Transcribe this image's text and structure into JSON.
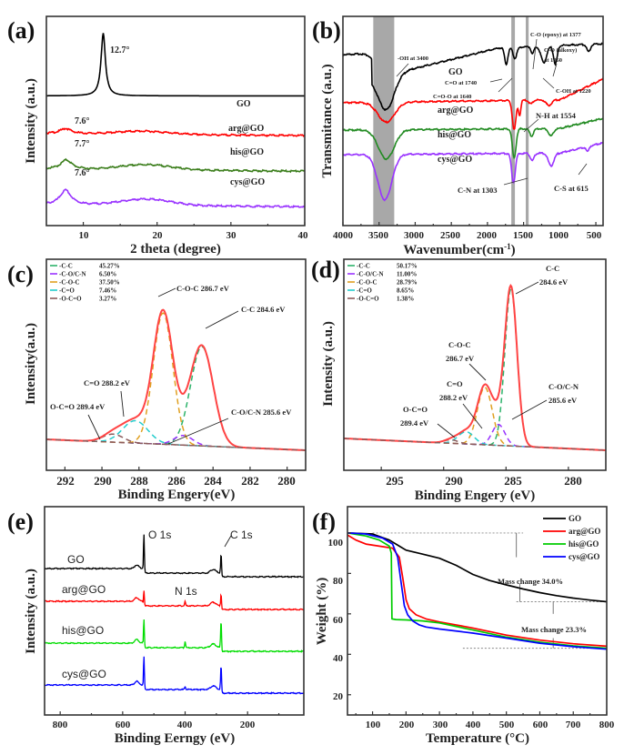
{
  "chart_data": [
    {
      "id": "a",
      "panel_label": "(a)",
      "type": "line",
      "title": "",
      "xlabel": "2 theta (degree)",
      "ylabel": "Intensity (a.u.)",
      "xlim": [
        5,
        40
      ],
      "xticks": [
        10,
        20,
        30,
        40
      ],
      "yticks_shown": false,
      "series": [
        {
          "name": "GO",
          "color": "#000000",
          "offset": 0.62,
          "peaks": [
            {
              "x": 12.7,
              "h": 0.3,
              "w": 0.35
            }
          ],
          "hump": {
            "x": 20,
            "h": 0.0,
            "w": 5
          }
        },
        {
          "name": "arg@GO",
          "color": "#ff0000",
          "offset": 0.44,
          "peaks": [
            {
              "x": 7.6,
              "h": 0.025,
              "w": 0.9
            }
          ],
          "hump": {
            "x": 18,
            "h": 0.015,
            "w": 4
          }
        },
        {
          "name": "his@GO",
          "color": "#3a7d1a",
          "offset": 0.27,
          "peaks": [
            {
              "x": 7.7,
              "h": 0.045,
              "w": 0.9
            }
          ],
          "hump": {
            "x": 18.5,
            "h": 0.025,
            "w": 4
          }
        },
        {
          "name": "cys@GO",
          "color": "#9933ff",
          "offset": 0.1,
          "peaks": [
            {
              "x": 7.6,
              "h": 0.07,
              "w": 0.9
            }
          ],
          "hump": {
            "x": 18.5,
            "h": 0.03,
            "w": 4
          }
        }
      ],
      "annotations": [
        "12.7°",
        "7.6°",
        "7.7°",
        "7.6°"
      ]
    },
    {
      "id": "b",
      "panel_label": "(b)",
      "type": "line",
      "xlabel": "Wavenumber(cm⁻¹)",
      "ylabel": "Transmitance (a.u.)",
      "xlim": [
        4000,
        400
      ],
      "xticks": [
        4000,
        3500,
        3000,
        2500,
        2000,
        1500,
        1000,
        500
      ],
      "shaded_bands": [
        [
          3580,
          3290
        ],
        [
          1670,
          1620
        ],
        [
          1470,
          1430
        ]
      ],
      "series": [
        {
          "name": "GO",
          "color": "#000000"
        },
        {
          "name": "arg@GO",
          "color": "#ff0000"
        },
        {
          "name": "his@GO",
          "color": "#228b22"
        },
        {
          "name": "cys@GO",
          "color": "#9933ff"
        }
      ],
      "annotations": [
        "-OH at 3400",
        "C=O at 1740",
        "C=O-O at 1640",
        "C-O (epoxy) at 1377",
        "C-O (alkoxy) at 1060",
        "C-OH at 1220",
        "N-H at 1554",
        "C-N at 1303",
        "C-S at 615"
      ]
    },
    {
      "id": "c",
      "panel_label": "(c)",
      "type": "line",
      "xlabel": "Binding Engery(eV)",
      "ylabel": "Intensity(a.u.)",
      "xlim": [
        293,
        279
      ],
      "xticks": [
        292,
        290,
        288,
        286,
        284,
        282,
        280
      ],
      "legend": [
        {
          "name": "-C-C",
          "value": "45.27%",
          "color": "#2db36b"
        },
        {
          "name": "-C-O/C-N",
          "value": "6.50%",
          "color": "#9933ff"
        },
        {
          "name": "-C-O-C",
          "value": "37.50%",
          "color": "#e0a020"
        },
        {
          "name": "-C=O",
          "value": "7.46%",
          "color": "#22cccc"
        },
        {
          "name": "-O-C=O",
          "value": "3.27%",
          "color": "#8b5a5a"
        }
      ],
      "components": [
        {
          "name": "C-C",
          "center": 284.6,
          "height": 0.62,
          "fwhm": 1.45,
          "color": "#2db36b"
        },
        {
          "name": "C-O/C-N",
          "center": 285.6,
          "height": 0.06,
          "fwhm": 1.2,
          "color": "#9933ff"
        },
        {
          "name": "C-O-C",
          "center": 286.7,
          "height": 0.82,
          "fwhm": 1.25,
          "color": "#e0a020"
        },
        {
          "name": "C=O",
          "center": 288.2,
          "height": 0.14,
          "fwhm": 1.6,
          "color": "#22cccc"
        },
        {
          "name": "O-C=O",
          "center": 289.4,
          "height": 0.05,
          "fwhm": 1.3,
          "color": "#8b5a5a"
        }
      ],
      "envelope_color": "#ff4444",
      "annotations": [
        "C-O-C 286.7 eV",
        "C-C 284.6 eV",
        "C=O 288.2 eV",
        "O-C=O 289.4 eV",
        "C-O/C-N 285.6 eV"
      ]
    },
    {
      "id": "d",
      "panel_label": "(d)",
      "type": "line",
      "xlabel": "Binding Engery (eV)",
      "ylabel": "Intensity (a.u.)",
      "xlim": [
        298,
        277
      ],
      "xticks": [
        295,
        290,
        285,
        280
      ],
      "legend": [
        {
          "name": "-C-C",
          "value": "50.17%",
          "color": "#2db36b"
        },
        {
          "name": "-C-O/C-N",
          "value": "11.00%",
          "color": "#9933ff"
        },
        {
          "name": "-C-O-C",
          "value": "28.79%",
          "color": "#e0a020"
        },
        {
          "name": "-C=O",
          "value": "8.65%",
          "color": "#22cccc"
        },
        {
          "name": "-O-C=O",
          "value": "1.38%",
          "color": "#8b5a5a"
        }
      ],
      "components": [
        {
          "name": "C-C",
          "center": 284.6,
          "height": 0.9,
          "fwhm": 1.15,
          "color": "#2db36b"
        },
        {
          "name": "C-O/C-N",
          "center": 285.6,
          "height": 0.12,
          "fwhm": 1.2,
          "color": "#9933ff"
        },
        {
          "name": "C-O-C",
          "center": 286.7,
          "height": 0.33,
          "fwhm": 1.4,
          "color": "#e0a020"
        },
        {
          "name": "C=O",
          "center": 288.2,
          "height": 0.07,
          "fwhm": 1.5,
          "color": "#22cccc"
        },
        {
          "name": "O-C=O",
          "center": 289.4,
          "height": 0.02,
          "fwhm": 1.3,
          "color": "#8b5a5a"
        }
      ],
      "envelope_color": "#ff4444",
      "annotations": [
        "C-C 284.6 eV",
        "C-O-C 286.7 eV",
        "C=O 288.2 eV",
        "O-C=O 289.4 eV",
        "C-O/C-N 285.6 eV"
      ]
    },
    {
      "id": "e",
      "panel_label": "(e)",
      "type": "line",
      "xlabel": "Binding Eerngy (eV)",
      "ylabel": "Intensity (a.u.)",
      "xlim": [
        850,
        20
      ],
      "xticks": [
        800,
        600,
        400,
        200
      ],
      "series": [
        {
          "name": "GO",
          "color": "#000000",
          "O1s": 0.72,
          "N1s": 0.0,
          "C1s": 0.42
        },
        {
          "name": "arg@GO",
          "color": "#ff0000",
          "O1s": 0.28,
          "N1s": 0.08,
          "C1s": 0.28
        },
        {
          "name": "his@GO",
          "color": "#00dd00",
          "O1s": 0.52,
          "N1s": 0.12,
          "C1s": 0.55
        },
        {
          "name": "cys@GO",
          "color": "#0000ff",
          "O1s": 0.6,
          "N1s": 0.06,
          "C1s": 0.5
        }
      ],
      "peak_labels": [
        "O 1s",
        "N 1s",
        "C 1s"
      ]
    },
    {
      "id": "f",
      "panel_label": "(f)",
      "type": "line",
      "xlabel": "Temperature (°C)",
      "ylabel": "Weight (%)",
      "xlim": [
        25,
        800
      ],
      "ylim": [
        10,
        113
      ],
      "xticks": [
        100,
        200,
        300,
        400,
        500,
        600,
        700,
        800
      ],
      "yticks": [
        20,
        40,
        60,
        80,
        100
      ],
      "legend_position": "top-right",
      "series": [
        {
          "name": "GO",
          "color": "#000000",
          "x": [
            25,
            100,
            150,
            180,
            200,
            250,
            300,
            350,
            400,
            450,
            500,
            550,
            600,
            650,
            700,
            750,
            800
          ],
          "y": [
            100,
            99.5,
            96.5,
            93.5,
            91.5,
            89.5,
            87.5,
            84,
            79.5,
            76.5,
            74.3,
            72.3,
            70.5,
            69,
            67.8,
            66.8,
            66
          ]
        },
        {
          "name": "arg@GO",
          "color": "#ff0000",
          "x": [
            25,
            50,
            80,
            120,
            160,
            180,
            190,
            200,
            210,
            230,
            260,
            300,
            400,
            500,
            600,
            700,
            800
          ],
          "y": [
            99,
            96.5,
            94.5,
            93.5,
            92.5,
            88,
            78,
            67,
            62.5,
            59.5,
            57.5,
            56,
            53,
            49.5,
            47,
            45.2,
            44
          ]
        },
        {
          "name": "his@GO",
          "color": "#00cc00",
          "x": [
            25,
            80,
            120,
            150,
            156,
            158,
            170,
            200,
            250,
            300,
            400,
            500,
            600,
            700,
            800
          ],
          "y": [
            100,
            98.5,
            96.5,
            93.5,
            90,
            57.5,
            57.2,
            57,
            56.5,
            55.5,
            52,
            48.5,
            46,
            44.2,
            43
          ]
        },
        {
          "name": "cys@GO",
          "color": "#0000ff",
          "x": [
            25,
            80,
            130,
            160,
            175,
            185,
            195,
            205,
            220,
            240,
            260,
            300,
            400,
            500,
            600,
            700,
            800
          ],
          "y": [
            100,
            99.5,
            97.5,
            94.5,
            88,
            76,
            64,
            59.5,
            56.5,
            54.5,
            53.5,
            52.5,
            50.5,
            48,
            45.5,
            43.8,
            42.5
          ]
        }
      ],
      "annotations": [
        "Mass change 34.0%",
        "Mass change 23.3%"
      ]
    }
  ],
  "labels": {
    "a": {
      "panel": "(a)",
      "xlabel": "2 theta (degree)",
      "ylabel": "Intensity (a.u.)",
      "peak_go": "12.7°",
      "peak_arg": "7.6°",
      "peak_his": "7.7°",
      "peak_cys": "7.6°",
      "s_go": "GO",
      "s_arg": "arg@GO",
      "s_his": "his@GO",
      "s_cys": "cys@GO",
      "t10": "10",
      "t20": "20",
      "t30": "30",
      "t40": "40"
    },
    "b": {
      "panel": "(b)",
      "xlabel": "Wavenumber(cm",
      "xlabel_sup": "-1",
      "xlabel_end": ")",
      "ylabel": "Transmitance (a.u.)",
      "s_go": "GO",
      "s_arg": "arg@GO",
      "s_his": "his@GO",
      "s_cys": "cys@GO",
      "oh": "-OH at 3400",
      "co1740": "C=O at 1740",
      "coo1640": "C=O-O at 1640",
      "epoxy": "C-O (epoxy) at 1377",
      "alkoxy1": "C-O (alkoxy)",
      "alkoxy2": "at 1060",
      "coh": "C-OH  at 1220",
      "nh": "N-H at 1554",
      "cn": "C-N at 1303",
      "cs": "C-S at 615",
      "t4000": "4000",
      "t3500": "3500",
      "t3000": "3000",
      "t2500": "2500",
      "t2000": "2000",
      "t1500": "1500",
      "t1000": "1000",
      "t500": "500"
    },
    "c": {
      "panel": "(c)",
      "xlabel": "Binding Engery(eV)",
      "ylabel": "Intensity(a.u.)",
      "coc": "C-O-C 286.7 eV",
      "cc": "C-C 284.6 eV",
      "co": "C=O 288.2 eV",
      "oco": "O-C=O 289.4 eV",
      "con": "C-O/C-N 285.6 eV",
      "t292": "292",
      "t290": "290",
      "t288": "288",
      "t286": "286",
      "t284": "284",
      "t282": "282",
      "t280": "280"
    },
    "d": {
      "panel": "(d)",
      "xlabel": "Binding Engery (eV)",
      "ylabel": "Intensity (a.u.)",
      "cc1": "C-C",
      "cc2": "284.6 eV",
      "coc1": "C-O-C",
      "coc2": "286.7 eV",
      "co1": "C=O",
      "co2": "288.2 eV",
      "oco1": "O-C=O",
      "oco2": "289.4 eV",
      "con1": "C-O/C-N",
      "con2": "285.6 eV",
      "t295": "295",
      "t290": "290",
      "t285": "285",
      "t280": "280"
    },
    "e": {
      "panel": "(e)",
      "xlabel": "Binding Eerngy (eV)",
      "ylabel": "Intensity (a.u.)",
      "o1s": "O 1s",
      "c1s": "C 1s",
      "n1s": "N 1s",
      "s_go": "GO",
      "s_arg": "arg@GO",
      "s_his": "his@GO",
      "s_cys": "cys@GO",
      "t800": "800",
      "t600": "600",
      "t400": "400",
      "t200": "200"
    },
    "f": {
      "panel": "(f)",
      "xlabel": "Temperature (°C)",
      "ylabel": "Weight (%)",
      "mc1": "Mass change 34.0%",
      "mc2": "Mass change 23.3%",
      "l_go": "GO",
      "l_arg": "arg@GO",
      "l_his": "his@GO",
      "l_cys": "cys@GO",
      "y100": "100",
      "y80": "80",
      "y60": "60",
      "y40": "40",
      "y20": "20",
      "t100": "100",
      "t200": "200",
      "t300": "300",
      "t400": "400",
      "t500": "500",
      "t600": "600",
      "t700": "700",
      "t800": "800"
    }
  }
}
